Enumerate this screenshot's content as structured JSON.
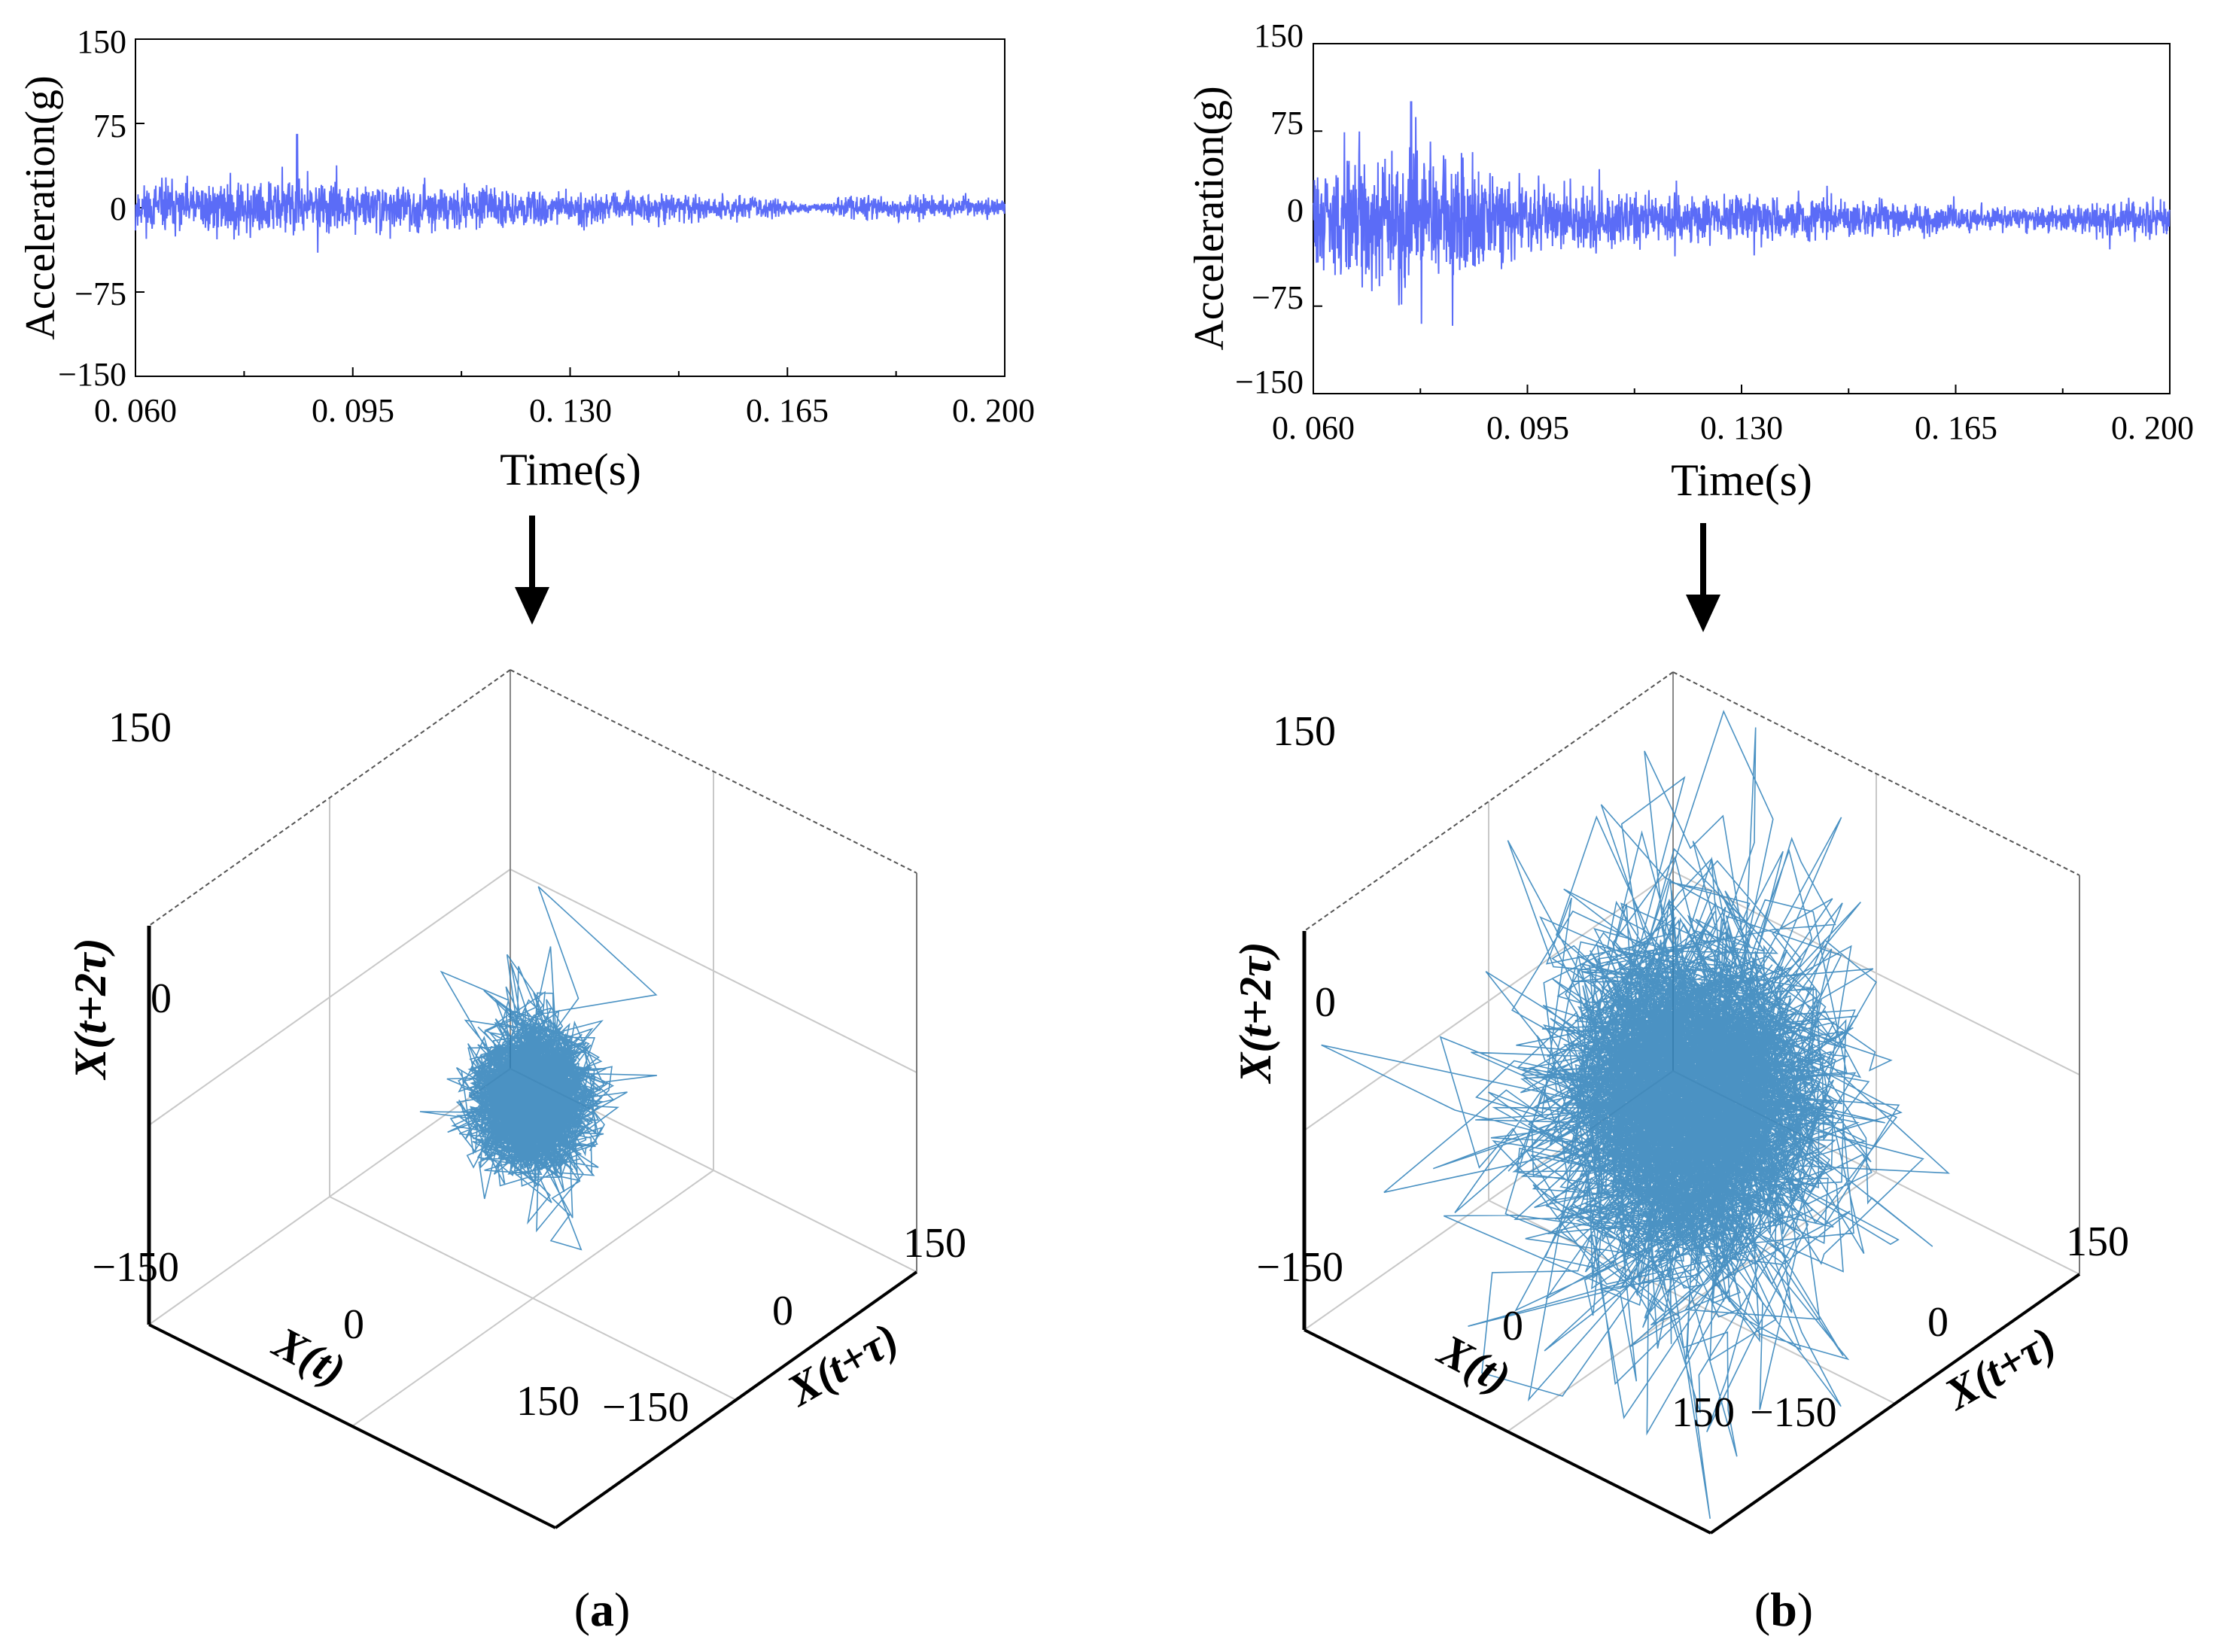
{
  "colors": {
    "time_series": "#5b6cf7",
    "phase_space": "#2b7fb8",
    "axis": "#000000",
    "grid": "#c8c8c8"
  },
  "chart_data": [
    {
      "panel": "a",
      "type": "line",
      "xlabel": "Time(s)",
      "ylabel": "Acceleration(g)",
      "xlim": [
        0.06,
        0.2
      ],
      "ylim": [
        -150,
        150
      ],
      "xticks": [
        "0. 060",
        "0. 095",
        "0. 130",
        "0. 165",
        "0. 200"
      ],
      "yticks": [
        "150",
        "75",
        "0",
        "−75",
        "−150"
      ],
      "series": [
        {
          "x_range": [
            0.06,
            0.2
          ],
          "amplitude_envelope": [
            {
              "t": 0.06,
              "amp": 30
            },
            {
              "t": 0.085,
              "amp": 35
            },
            {
              "t": 0.095,
              "amp": 28
            },
            {
              "t": 0.13,
              "amp": 20
            },
            {
              "t": 0.16,
              "amp": 14
            },
            {
              "t": 0.17,
              "amp": 5
            },
            {
              "t": 0.175,
              "amp": 15
            },
            {
              "t": 0.2,
              "amp": 12
            }
          ],
          "peak": {
            "t": 0.086,
            "value": 65
          }
        }
      ]
    },
    {
      "panel": "b",
      "type": "line",
      "xlabel": "Time(s)",
      "ylabel": "Acceleration(g)",
      "xlim": [
        0.06,
        0.2
      ],
      "ylim": [
        -150,
        150
      ],
      "xticks": [
        "0. 060",
        "0. 095",
        "0. 130",
        "0. 165",
        "0. 200"
      ],
      "yticks": [
        "150",
        "75",
        "0",
        "−75",
        "−150"
      ],
      "series": [
        {
          "x_range": [
            0.06,
            0.2
          ],
          "amplitude_envelope": [
            {
              "t": 0.06,
              "amp": 55
            },
            {
              "t": 0.075,
              "amp": 90
            },
            {
              "t": 0.09,
              "amp": 60
            },
            {
              "t": 0.1,
              "amp": 35
            },
            {
              "t": 0.13,
              "amp": 28
            },
            {
              "t": 0.16,
              "amp": 18
            },
            {
              "t": 0.175,
              "amp": 12
            },
            {
              "t": 0.2,
              "amp": 25
            }
          ],
          "peak": {
            "t": 0.076,
            "value": 100
          }
        }
      ]
    },
    {
      "panel": "a",
      "type": "scatter",
      "zlabel": "X(t+2τ)",
      "xlabel": "X(t)",
      "ylabel": "X(t+τ)",
      "xlim": [
        -150,
        150
      ],
      "ylim": [
        -150,
        150
      ],
      "zlim": [
        -150,
        150
      ],
      "zticks": [
        "150",
        "0"
      ],
      "xticks": [
        "−150",
        "0",
        "150"
      ],
      "yticks": [
        "−150",
        "0",
        "150"
      ],
      "attractor": {
        "spread": 30,
        "center": [
          0,
          0,
          0
        ]
      }
    },
    {
      "panel": "b",
      "type": "scatter",
      "zlabel": "X(t+2τ)",
      "xlabel": "X(t)",
      "ylabel": "X(t+τ)",
      "xlim": [
        -150,
        150
      ],
      "ylim": [
        -150,
        150
      ],
      "zlim": [
        -150,
        150
      ],
      "zticks": [
        "150",
        "0"
      ],
      "xticks": [
        "−150",
        "0",
        "150"
      ],
      "yticks": [
        "−150",
        "0",
        "150"
      ],
      "attractor": {
        "spread": 75,
        "center": [
          0,
          0,
          0
        ]
      }
    }
  ],
  "captions": [
    {
      "open": "(",
      "letter": "a",
      "close": ")"
    },
    {
      "open": "(",
      "letter": "b",
      "close": ")"
    }
  ]
}
